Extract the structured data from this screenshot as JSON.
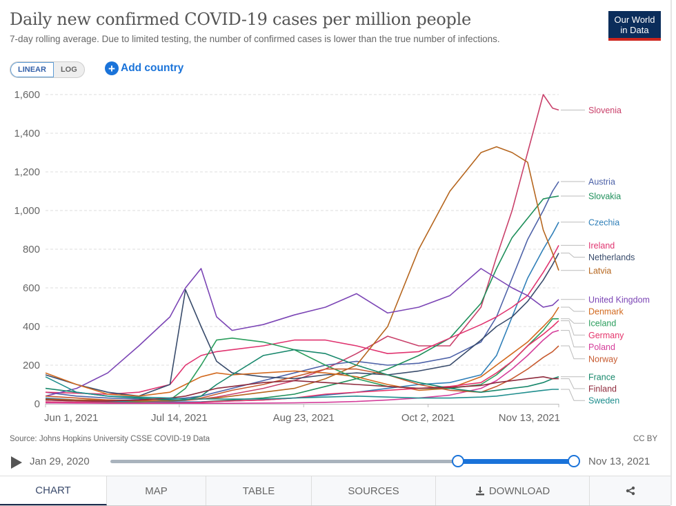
{
  "header": {
    "title": "Daily new confirmed COVID-19 cases per million people",
    "subtitle": "7-day rolling average. Due to limited testing, the number of confirmed cases is lower than the true number of infections.",
    "logo_line1": "Our World",
    "logo_line2": "in Data"
  },
  "controls": {
    "scale_linear": "LINEAR",
    "scale_log": "LOG",
    "scale_selected": "LINEAR",
    "add_country_icon": "plus-circle-icon",
    "add_country": "Add country"
  },
  "footer": {
    "source": "Source: Johns Hopkins University CSSE COVID-19 Data",
    "license": "CC BY"
  },
  "timeline": {
    "play_icon": "play-icon",
    "start_label": "Jan 29, 2020",
    "end_label": "Nov 13, 2021",
    "range_start_fraction": 0.75,
    "range_end_fraction": 1.0
  },
  "tabs": [
    {
      "label": "CHART",
      "active": true
    },
    {
      "label": "MAP",
      "active": false
    },
    {
      "label": "TABLE",
      "active": false
    },
    {
      "label": "SOURCES",
      "active": false
    },
    {
      "label": "DOWNLOAD",
      "icon": "download-icon",
      "active": false
    },
    {
      "label": "",
      "icon": "share-icon",
      "active": false
    }
  ],
  "chart_data": {
    "type": "line",
    "title": "Daily new confirmed COVID-19 cases per million people",
    "xlabel": "",
    "ylabel": "",
    "x_unit": "days since Jun 1, 2021",
    "xlim": [
      0,
      165
    ],
    "ylim": [
      0,
      1600
    ],
    "grid": true,
    "legend": "right (line-end labels)",
    "x_ticks": [
      {
        "day": 0,
        "label": "Jun 1, 2021"
      },
      {
        "day": 43,
        "label": "Jul 14, 2021"
      },
      {
        "day": 83,
        "label": "Aug 23, 2021"
      },
      {
        "day": 123,
        "label": "Oct 2, 2021"
      },
      {
        "day": 165,
        "label": "Nov 13, 2021"
      }
    ],
    "y_ticks": [
      0,
      200,
      400,
      600,
      800,
      1000,
      1200,
      1400,
      1600
    ],
    "y_tick_labels": [
      "0",
      "200",
      "400",
      "600",
      "800",
      "1,000",
      "1,200",
      "1,400",
      "1,600"
    ],
    "x": [
      0,
      10,
      20,
      30,
      40,
      45,
      50,
      55,
      60,
      70,
      80,
      90,
      100,
      110,
      120,
      130,
      140,
      145,
      150,
      155,
      160,
      163,
      165
    ],
    "series": [
      {
        "name": "Slovenia",
        "color": "#c9406a",
        "values": [
          20,
          15,
          12,
          12,
          15,
          18,
          25,
          35,
          50,
          80,
          120,
          180,
          260,
          350,
          300,
          300,
          500,
          760,
          1000,
          1300,
          1600,
          1530,
          1520
        ]
      },
      {
        "name": "Austria",
        "color": "#4d62a8",
        "values": [
          60,
          40,
          30,
          25,
          25,
          30,
          40,
          60,
          80,
          120,
          160,
          200,
          220,
          200,
          210,
          240,
          320,
          450,
          650,
          850,
          1000,
          1100,
          1150
        ]
      },
      {
        "name": "Slovakia",
        "color": "#1e8f5a",
        "values": [
          5,
          5,
          5,
          5,
          5,
          8,
          10,
          15,
          20,
          30,
          50,
          90,
          130,
          180,
          250,
          340,
          520,
          700,
          860,
          960,
          1060,
          1070,
          1075
        ]
      },
      {
        "name": "Czechia",
        "color": "#2f7fb8",
        "values": [
          30,
          20,
          15,
          12,
          10,
          10,
          10,
          12,
          15,
          20,
          30,
          45,
          60,
          80,
          100,
          110,
          150,
          250,
          450,
          650,
          800,
          880,
          940
        ]
      },
      {
        "name": "Ireland",
        "color": "#e0336f",
        "values": [
          60,
          55,
          50,
          60,
          100,
          200,
          250,
          270,
          280,
          300,
          330,
          330,
          300,
          260,
          270,
          340,
          410,
          450,
          500,
          560,
          680,
          760,
          820
        ]
      },
      {
        "name": "Netherlands",
        "color": "#384b6b",
        "values": [
          150,
          100,
          60,
          40,
          100,
          590,
          400,
          220,
          160,
          140,
          130,
          150,
          160,
          150,
          170,
          200,
          330,
          400,
          450,
          530,
          640,
          720,
          780
        ]
      },
      {
        "name": "Latvia",
        "color": "#b5651d",
        "values": [
          25,
          20,
          20,
          18,
          18,
          20,
          25,
          30,
          40,
          60,
          80,
          130,
          200,
          400,
          800,
          1100,
          1300,
          1330,
          1300,
          1250,
          900,
          780,
          690
        ]
      },
      {
        "name": "United Kingdom",
        "color": "#7b45b5",
        "values": [
          40,
          80,
          160,
          300,
          450,
          600,
          700,
          450,
          380,
          410,
          460,
          500,
          570,
          470,
          500,
          560,
          700,
          650,
          600,
          560,
          500,
          510,
          540
        ]
      },
      {
        "name": "Denmark",
        "color": "#d2691e",
        "values": [
          160,
          100,
          50,
          40,
          60,
          100,
          140,
          160,
          150,
          160,
          170,
          160,
          140,
          100,
          70,
          80,
          140,
          200,
          260,
          320,
          400,
          450,
          500
        ]
      },
      {
        "name": "Iceland",
        "color": "#2a9d5c",
        "values": [
          10,
          8,
          8,
          10,
          20,
          80,
          200,
          330,
          340,
          320,
          280,
          200,
          130,
          90,
          80,
          80,
          100,
          150,
          220,
          300,
          380,
          440,
          440
        ]
      },
      {
        "name": "Germany",
        "color": "#e5336a",
        "values": [
          10,
          8,
          6,
          5,
          5,
          6,
          8,
          12,
          15,
          20,
          30,
          50,
          60,
          70,
          80,
          90,
          110,
          160,
          220,
          300,
          360,
          400,
          430
        ]
      },
      {
        "name": "Poland",
        "color": "#d43d9a",
        "values": [
          5,
          4,
          3,
          3,
          3,
          3,
          3,
          3,
          3,
          4,
          5,
          8,
          12,
          20,
          30,
          45,
          80,
          120,
          180,
          250,
          330,
          370,
          380
        ]
      },
      {
        "name": "Norway",
        "color": "#c75a2f",
        "values": [
          40,
          30,
          20,
          15,
          15,
          20,
          30,
          50,
          70,
          100,
          140,
          180,
          180,
          150,
          100,
          70,
          60,
          90,
          130,
          180,
          240,
          270,
          300
        ]
      },
      {
        "name": "France",
        "color": "#17876b",
        "values": [
          80,
          60,
          40,
          30,
          20,
          20,
          40,
          100,
          150,
          250,
          280,
          260,
          200,
          150,
          110,
          80,
          60,
          70,
          80,
          90,
          110,
          130,
          140
        ]
      },
      {
        "name": "Finland",
        "color": "#8e2a3c",
        "values": [
          20,
          15,
          15,
          20,
          30,
          40,
          60,
          80,
          90,
          110,
          120,
          110,
          100,
          90,
          80,
          85,
          95,
          110,
          120,
          130,
          140,
          130,
          130
        ]
      },
      {
        "name": "Sweden",
        "color": "#1f8e8e",
        "values": [
          140,
          60,
          40,
          35,
          30,
          25,
          25,
          25,
          25,
          25,
          30,
          35,
          40,
          35,
          30,
          30,
          35,
          40,
          50,
          60,
          70,
          75,
          75
        ]
      }
    ],
    "legend_entries": [
      "Slovenia",
      "Austria",
      "Slovakia",
      "Czechia",
      "Ireland",
      "Netherlands",
      "Latvia",
      "United Kingdom",
      "Denmark",
      "Iceland",
      "Germany",
      "Poland",
      "Norway",
      "France",
      "Finland",
      "Sweden"
    ]
  }
}
